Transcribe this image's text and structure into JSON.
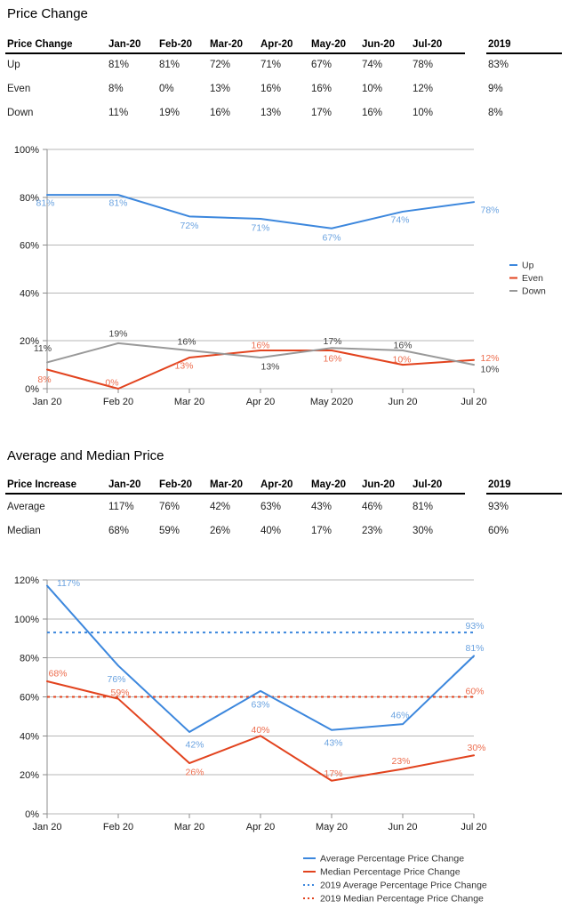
{
  "page": {
    "background": "#ffffff"
  },
  "colors": {
    "blue_line": "#3c87dd",
    "blue_label": "#6ba3e0",
    "red_line": "#e2431e",
    "orange_label": "#ed6e4f",
    "gray_line": "#999999",
    "dark_label": "#404040",
    "grid": "#b7b7b7",
    "axis": "#8c8c8c",
    "axis_text": "#1a1a1a",
    "legend_text": "#333333",
    "rule": "#000000"
  },
  "section1": {
    "title": "Price Change",
    "table": {
      "header": [
        "Price Change",
        "Jan-20",
        "Feb-20",
        "Mar-20",
        "Apr-20",
        "May-20",
        "Jun-20",
        "Jul-20",
        "2019"
      ],
      "rows": [
        [
          "Up",
          "81%",
          "81%",
          "72%",
          "71%",
          "67%",
          "74%",
          "78%",
          "83%"
        ],
        [
          "Even",
          "8%",
          "0%",
          "13%",
          "16%",
          "16%",
          "10%",
          "12%",
          "9%"
        ],
        [
          "Down",
          "11%",
          "19%",
          "16%",
          "13%",
          "17%",
          "16%",
          "10%",
          "8%"
        ]
      ]
    }
  },
  "section2": {
    "title": "Average and Median Price",
    "table": {
      "header": [
        "Price Increase",
        "Jan-20",
        "Feb-20",
        "Mar-20",
        "Apr-20",
        "May-20",
        "Jun-20",
        "Jul-20",
        "2019"
      ],
      "rows": [
        [
          "Average",
          "117%",
          "76%",
          "42%",
          "63%",
          "43%",
          "46%",
          "81%",
          "93%"
        ],
        [
          "Median",
          "68%",
          "59%",
          "26%",
          "40%",
          "17%",
          "23%",
          "30%",
          "60%"
        ]
      ]
    }
  },
  "chart_data": [
    {
      "type": "line",
      "title": "",
      "xlabel": "",
      "ylabel": "",
      "categories": [
        "Jan 20",
        "Feb 20",
        "Mar 20",
        "Apr 20",
        "May 2020",
        "Jun 20",
        "Jul 20"
      ],
      "series": [
        {
          "name": "Up",
          "values": [
            81,
            81,
            72,
            71,
            67,
            74,
            78
          ],
          "color": "#3c87dd",
          "label_color": "#6ba3e0"
        },
        {
          "name": "Even",
          "values": [
            8,
            0,
            13,
            16,
            16,
            10,
            12
          ],
          "color": "#e2431e",
          "label_color": "#ed6e4f"
        },
        {
          "name": "Down",
          "values": [
            11,
            19,
            16,
            13,
            17,
            16,
            10
          ],
          "color": "#999999",
          "label_color": "#404040"
        }
      ],
      "ylim": [
        0,
        100
      ],
      "ytick_step": 20,
      "ytick_suffix": "%",
      "grid": true,
      "legend_position": "right"
    },
    {
      "type": "line",
      "title": "",
      "xlabel": "",
      "ylabel": "",
      "categories": [
        "Jan 20",
        "Feb 20",
        "Mar 20",
        "Apr 20",
        "May 20",
        "Jun 20",
        "Jul 20"
      ],
      "series": [
        {
          "name": "Average Percentage Price Change",
          "values": [
            117,
            76,
            42,
            63,
            43,
            46,
            81
          ],
          "color": "#3c87dd",
          "label_color": "#6ba3e0"
        },
        {
          "name": "Median Percentage Price Change",
          "values": [
            68,
            59,
            26,
            40,
            17,
            23,
            30
          ],
          "color": "#e2431e",
          "label_color": "#ed6e4f"
        }
      ],
      "reference_lines": [
        {
          "name": "2019 Average Percentage Price Change",
          "value": 93,
          "color": "#3c87dd",
          "label_color": "#6ba3e0"
        },
        {
          "name": "2019 Median Percentage Price Change",
          "value": 60,
          "color": "#e2431e",
          "label_color": "#ed6e4f"
        }
      ],
      "ylim": [
        0,
        120
      ],
      "ytick_step": 20,
      "ytick_suffix": "%",
      "grid": true,
      "legend_position": "bottom"
    }
  ]
}
